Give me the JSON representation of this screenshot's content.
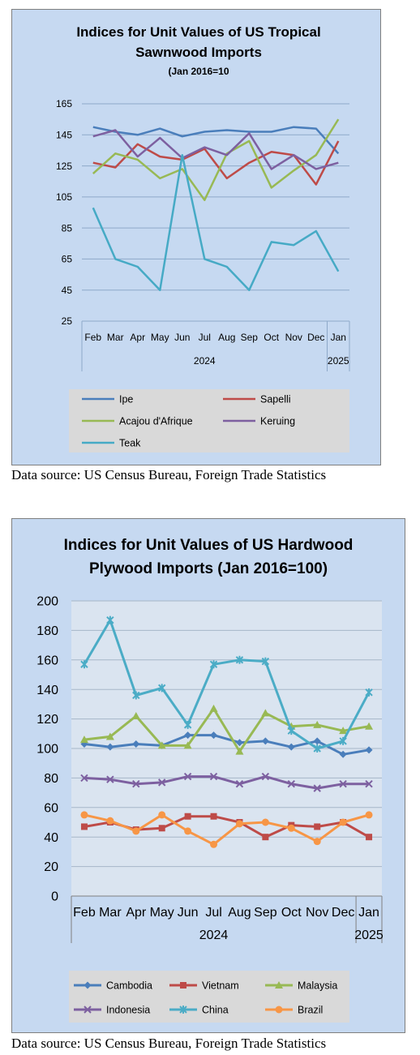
{
  "charts": [
    {
      "source_note": "Data source: US Census Bureau, Foreign Trade Statistics"
    },
    {
      "source_note": "Data source: US Census Bureau, Foreign Trade Statistics"
    }
  ],
  "chart_data": [
    {
      "type": "line",
      "title_lines": [
        "Indices for Unit Values of US Tropical",
        "Sawnwood Imports"
      ],
      "subtitle": "(Jan 2016=10",
      "categories": [
        "Feb",
        "Mar",
        "Apr",
        "May",
        "Jun",
        "Jul",
        "Aug",
        "Sep",
        "Oct",
        "Nov",
        "Dec",
        "Jan"
      ],
      "year_labels": [
        "2024",
        "2025"
      ],
      "ylim": [
        25,
        165
      ],
      "yticks": [
        25,
        45,
        65,
        85,
        105,
        125,
        145,
        165
      ],
      "grid": true,
      "legend_position": "bottom",
      "series": [
        {
          "name": "Ipe",
          "color": "#4a7ebb",
          "values": [
            150,
            147,
            145,
            149,
            144,
            147,
            148,
            147,
            147,
            150,
            149,
            133
          ]
        },
        {
          "name": "Sapelli",
          "color": "#be4b48",
          "values": [
            127,
            124,
            139,
            131,
            129,
            136,
            117,
            127,
            134,
            132,
            113,
            141
          ]
        },
        {
          "name": "Acajou d'Afrique",
          "color": "#98b954",
          "values": [
            120,
            133,
            129,
            117,
            123,
            103,
            133,
            141,
            111,
            122,
            132,
            155
          ]
        },
        {
          "name": "Keruing",
          "color": "#7d60a0",
          "values": [
            144,
            148,
            131,
            143,
            130,
            137,
            132,
            146,
            123,
            132,
            123,
            127
          ]
        },
        {
          "name": "Teak",
          "color": "#46aac5",
          "values": [
            98,
            65,
            60,
            45,
            132,
            65,
            60,
            45,
            76,
            74,
            83,
            57
          ]
        }
      ]
    },
    {
      "type": "line",
      "title_lines": [
        "Indices for Unit Values of US Hardwood",
        "Plywood Imports (Jan 2016=100)"
      ],
      "categories": [
        "Feb",
        "Mar",
        "Apr",
        "May",
        "Jun",
        "Jul",
        "Aug",
        "Sep",
        "Oct",
        "Nov",
        "Dec",
        "Jan"
      ],
      "year_labels": [
        "2024",
        "2025"
      ],
      "ylim": [
        0,
        200
      ],
      "yticks": [
        0,
        20,
        40,
        60,
        80,
        100,
        120,
        140,
        160,
        180,
        200
      ],
      "grid": true,
      "legend_position": "bottom",
      "series": [
        {
          "name": "Cambodia",
          "color": "#4a7ebb",
          "marker": "diamond",
          "values": [
            103,
            101,
            103,
            102,
            109,
            109,
            104,
            105,
            101,
            105,
            96,
            99
          ]
        },
        {
          "name": "Vietnam",
          "color": "#be4b48",
          "marker": "square",
          "values": [
            47,
            50,
            45,
            46,
            54,
            54,
            50,
            40,
            48,
            47,
            50,
            40
          ]
        },
        {
          "name": "Malaysia",
          "color": "#98b954",
          "marker": "triangle",
          "values": [
            106,
            108,
            122,
            102,
            102,
            127,
            98,
            124,
            115,
            116,
            112,
            115
          ]
        },
        {
          "name": "Indonesia",
          "color": "#7d60a0",
          "marker": "x",
          "values": [
            80,
            79,
            76,
            77,
            81,
            81,
            76,
            81,
            76,
            73,
            76,
            76
          ]
        },
        {
          "name": "China",
          "color": "#4bacc6",
          "marker": "star",
          "values": [
            157,
            187,
            136,
            141,
            116,
            157,
            160,
            159,
            112,
            100,
            105,
            138
          ]
        },
        {
          "name": "Brazil",
          "color": "#f79646",
          "marker": "circle",
          "values": [
            55,
            51,
            44,
            55,
            44,
            35,
            49,
            50,
            46,
            37,
            50,
            55
          ]
        }
      ]
    }
  ]
}
